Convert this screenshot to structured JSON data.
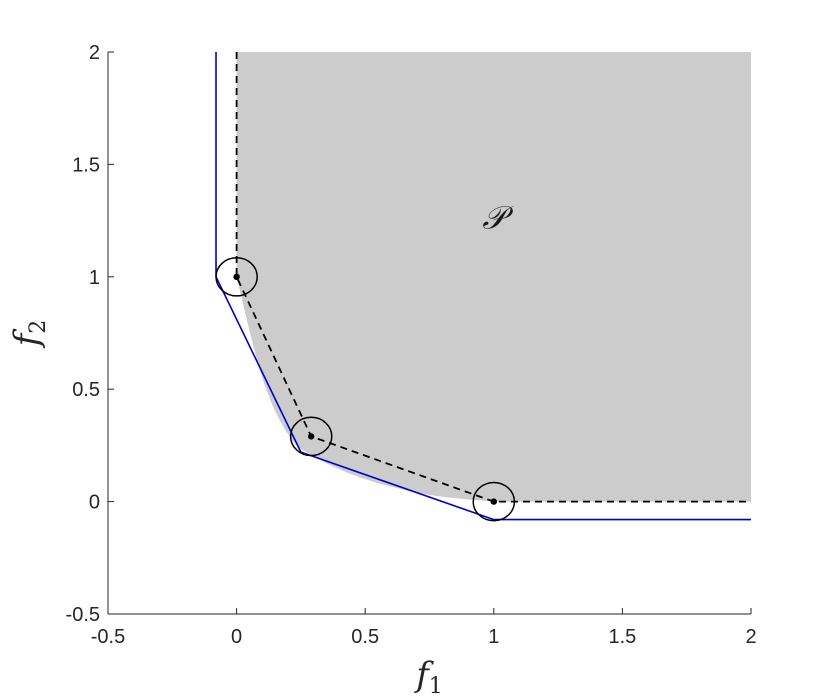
{
  "chart_data": {
    "type": "line",
    "xlabel": "f",
    "xlabel_sub": "1",
    "ylabel": "f",
    "ylabel_sub": "2",
    "xlim": [
      -0.5,
      2
    ],
    "ylim": [
      -0.5,
      2
    ],
    "x_ticks": [
      -0.5,
      0,
      0.5,
      1,
      1.5,
      2
    ],
    "x_tick_labels": [
      "-0.5",
      "0",
      "0.5",
      "1",
      "1.5",
      "2"
    ],
    "y_ticks": [
      -0.5,
      0,
      0.5,
      1,
      1.5,
      2
    ],
    "y_tick_labels": [
      "-0.5",
      "0",
      "0.5",
      "1",
      "1.5",
      "2"
    ],
    "grid": false,
    "region_label": "𝒫",
    "region_label_pos": {
      "x": 1.0,
      "y": 1.25
    },
    "region": {
      "color": "#cccccc",
      "boundary": [
        {
          "x": 0,
          "y": 2
        },
        {
          "x": 0,
          "y": 1
        },
        {
          "x": 0.1,
          "y": 0.55
        },
        {
          "x": 0.2,
          "y": 0.3
        },
        {
          "x": 0.3,
          "y": 0.2
        },
        {
          "x": 0.5,
          "y": 0.1
        },
        {
          "x": 0.75,
          "y": 0.03
        },
        {
          "x": 1,
          "y": 0
        },
        {
          "x": 2,
          "y": 0
        },
        {
          "x": 2,
          "y": 2
        }
      ]
    },
    "series": [
      {
        "style": "solid",
        "color": "#0000cc",
        "points": [
          {
            "x": -0.08,
            "y": 2
          },
          {
            "x": -0.08,
            "y": 1
          },
          {
            "x": 0.25,
            "y": 0.22
          },
          {
            "x": 1,
            "y": -0.08
          },
          {
            "x": 2,
            "y": -0.08
          }
        ]
      },
      {
        "style": "dashed",
        "color": "#000000",
        "points": [
          {
            "x": 0,
            "y": 2
          },
          {
            "x": 0,
            "y": 1
          },
          {
            "x": 0.29,
            "y": 0.29
          },
          {
            "x": 1,
            "y": 0
          },
          {
            "x": 2,
            "y": 0
          }
        ]
      }
    ],
    "markers": [
      {
        "x": 0,
        "y": 1,
        "circle_rx": 0.08,
        "circle_ry": 0.085
      },
      {
        "x": 0.29,
        "y": 0.29,
        "circle_rx": 0.08,
        "circle_ry": 0.085
      },
      {
        "x": 1,
        "y": 0,
        "circle_rx": 0.08,
        "circle_ry": 0.085
      }
    ]
  }
}
